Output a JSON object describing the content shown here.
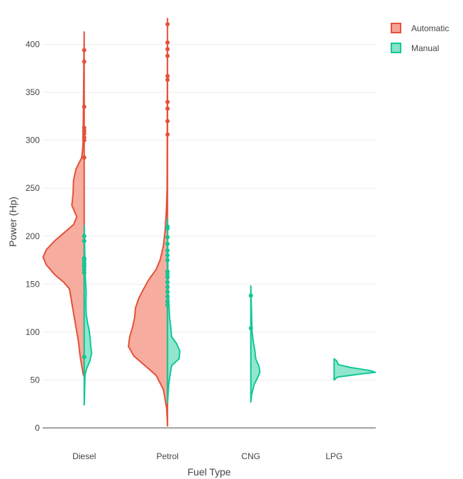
{
  "chart_data": {
    "type": "violin",
    "title": "",
    "xlabel": "Fuel Type",
    "ylabel": "Power (Hp)",
    "ylim": [
      0,
      430
    ],
    "yticks": [
      0,
      50,
      100,
      150,
      200,
      250,
      300,
      350,
      400
    ],
    "grid": true,
    "legend_position": "top-right",
    "categories": [
      "Diesel",
      "Petrol",
      "CNG",
      "LPG"
    ],
    "series": [
      {
        "name": "Automatic",
        "side": "negative",
        "color": "#e4513a",
        "fill": "#f5a393",
        "groups": [
          {
            "category": "Diesel",
            "range": [
              55,
              413
            ],
            "density": [
              [
                55,
                0.02
              ],
              [
                65,
                0.06
              ],
              [
                75,
                0.1
              ],
              [
                90,
                0.14
              ],
              [
                100,
                0.18
              ],
              [
                110,
                0.22
              ],
              [
                120,
                0.26
              ],
              [
                130,
                0.3
              ],
              [
                138,
                0.33
              ],
              [
                145,
                0.36
              ],
              [
                152,
                0.5
              ],
              [
                160,
                0.72
              ],
              [
                170,
                0.92
              ],
              [
                178,
                1.0
              ],
              [
                186,
                0.92
              ],
              [
                195,
                0.72
              ],
              [
                205,
                0.45
              ],
              [
                212,
                0.26
              ],
              [
                220,
                0.18
              ],
              [
                232,
                0.3
              ],
              [
                245,
                0.27
              ],
              [
                258,
                0.26
              ],
              [
                270,
                0.2
              ],
              [
                282,
                0.06
              ],
              [
                295,
                0.03
              ],
              [
                330,
                0.02
              ],
              [
                413,
                0.0
              ]
            ],
            "points": [
              74,
              162,
              165,
              168,
              170,
              172,
              175,
              177,
              195,
              200,
              282,
              300,
              303,
              307,
              310,
              313,
              335,
              382,
              394
            ]
          },
          {
            "category": "Petrol",
            "range": [
              2,
              427
            ],
            "density": [
              [
                2,
                0.0
              ],
              [
                20,
                0.02
              ],
              [
                40,
                0.1
              ],
              [
                55,
                0.28
              ],
              [
                65,
                0.55
              ],
              [
                75,
                0.82
              ],
              [
                85,
                0.95
              ],
              [
                95,
                0.92
              ],
              [
                105,
                0.85
              ],
              [
                115,
                0.8
              ],
              [
                125,
                0.78
              ],
              [
                135,
                0.7
              ],
              [
                145,
                0.58
              ],
              [
                155,
                0.45
              ],
              [
                165,
                0.28
              ],
              [
                175,
                0.18
              ],
              [
                190,
                0.1
              ],
              [
                205,
                0.06
              ],
              [
                225,
                0.03
              ],
              [
                250,
                0.01
              ],
              [
                427,
                0.0
              ]
            ],
            "points": [
              128,
              132,
              137,
              142,
              147,
              152,
              157,
              163,
              306,
              320,
              333,
              340,
              363,
              367,
              388,
              395,
              402,
              421
            ]
          }
        ]
      },
      {
        "name": "Manual",
        "side": "positive",
        "color": "#10c796",
        "fill": "#86e3c9",
        "groups": [
          {
            "category": "Diesel",
            "range": [
              24,
              211
            ],
            "density": [
              [
                24,
                0.0
              ],
              [
                55,
                0.02
              ],
              [
                62,
                0.06
              ],
              [
                70,
                0.14
              ],
              [
                78,
                0.18
              ],
              [
                85,
                0.16
              ],
              [
                95,
                0.14
              ],
              [
                102,
                0.12
              ],
              [
                110,
                0.08
              ],
              [
                118,
                0.05
              ],
              [
                130,
                0.04
              ],
              [
                140,
                0.05
              ],
              [
                155,
                0.03
              ],
              [
                170,
                0.02
              ],
              [
                190,
                0.01
              ],
              [
                211,
                0.0
              ]
            ],
            "points": [
              74,
              162,
              165,
              168,
              170,
              172,
              175,
              177,
              195,
              200
            ]
          },
          {
            "category": "Petrol",
            "range": [
              26,
              218
            ],
            "density": [
              [
                26,
                0.0
              ],
              [
                45,
                0.03
              ],
              [
                55,
                0.06
              ],
              [
                65,
                0.1
              ],
              [
                72,
                0.28
              ],
              [
                80,
                0.3
              ],
              [
                88,
                0.22
              ],
              [
                95,
                0.1
              ],
              [
                105,
                0.08
              ],
              [
                115,
                0.05
              ],
              [
                125,
                0.04
              ],
              [
                140,
                0.02
              ],
              [
                160,
                0.01
              ],
              [
                218,
                0.0
              ]
            ],
            "points": [
              128,
              132,
              137,
              142,
              147,
              152,
              157,
              160,
              163,
              175,
              180,
              185,
              192,
              199,
              208,
              210
            ]
          },
          {
            "category": "CNG",
            "range": [
              27,
              148
            ],
            "density": [
              [
                27,
                0.0
              ],
              [
                35,
                0.02
              ],
              [
                45,
                0.08
              ],
              [
                52,
                0.16
              ],
              [
                58,
                0.22
              ],
              [
                64,
                0.2
              ],
              [
                72,
                0.12
              ],
              [
                80,
                0.1
              ],
              [
                90,
                0.06
              ],
              [
                100,
                0.03
              ],
              [
                115,
                0.02
              ],
              [
                130,
                0.01
              ],
              [
                148,
                0.0
              ]
            ],
            "points": [
              104,
              138
            ]
          },
          {
            "category": "LPG",
            "range": [
              50,
              72
            ],
            "density": [
              [
                50,
                0.0
              ],
              [
                53,
                0.08
              ],
              [
                56,
                0.6
              ],
              [
                58,
                1.0
              ],
              [
                60,
                0.85
              ],
              [
                63,
                0.4
              ],
              [
                66,
                0.1
              ],
              [
                70,
                0.06
              ],
              [
                72,
                0.0
              ]
            ],
            "points": []
          }
        ]
      }
    ]
  }
}
